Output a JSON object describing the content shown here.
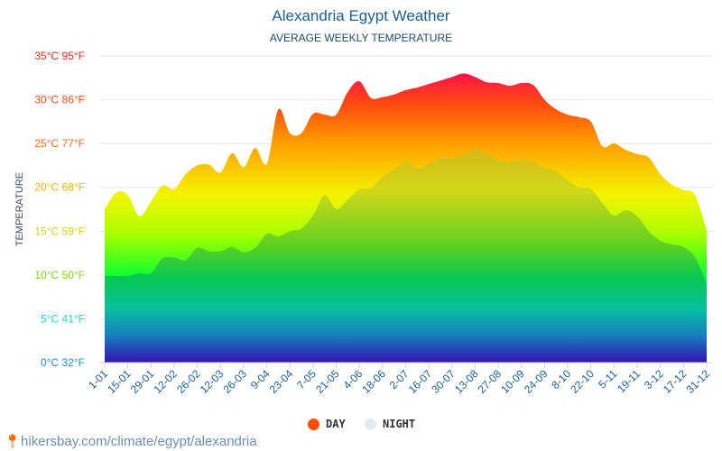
{
  "chart_data": {
    "type": "area",
    "title": "Alexandria Egypt Weather",
    "subtitle": "AVERAGE WEEKLY TEMPERATURE",
    "ylabel": "TEMPERATURE",
    "ylim": [
      0,
      35
    ],
    "y_ticks": [
      {
        "c": 0,
        "label": "0°C 32°F",
        "color": "#1e8fd0"
      },
      {
        "c": 5,
        "label": "5°C 41°F",
        "color": "#1ad6c8"
      },
      {
        "c": 10,
        "label": "10°C 50°F",
        "color": "#7ad61a"
      },
      {
        "c": 15,
        "label": "15°C 59°F",
        "color": "#c8d61a"
      },
      {
        "c": 20,
        "label": "20°C 68°F",
        "color": "#f0b400"
      },
      {
        "c": 25,
        "label": "25°C 77°F",
        "color": "#ff6a1a"
      },
      {
        "c": 30,
        "label": "30°C 86°F",
        "color": "#ff4a1a"
      },
      {
        "c": 35,
        "label": "35°C 95°F",
        "color": "#ff2a1a"
      }
    ],
    "x_tick_labels": [
      "1-01",
      "15-01",
      "29-01",
      "12-02",
      "26-02",
      "12-03",
      "26-03",
      "9-04",
      "23-04",
      "7-05",
      "21-05",
      "4-06",
      "18-06",
      "2-07",
      "16-07",
      "30-07",
      "13-08",
      "27-08",
      "10-09",
      "24-09",
      "8-10",
      "22-10",
      "5-11",
      "19-11",
      "3-12",
      "17-12",
      "31-12"
    ],
    "grid": true,
    "legend_position": "bottom",
    "series": [
      {
        "name": "DAY",
        "color": "#ff5000",
        "values": [
          17.5,
          19.4,
          19.1,
          16.7,
          18.4,
          20.2,
          19.8,
          21.5,
          22.5,
          22.6,
          21.7,
          23.9,
          22.3,
          24.5,
          22.7,
          28.9,
          26.2,
          26.2,
          28.4,
          28.3,
          28.3,
          30.9,
          32.1,
          30.2,
          30.3,
          30.6,
          31.1,
          31.4,
          31.8,
          32.2,
          32.6,
          33.0,
          32.6,
          32.0,
          31.9,
          31.6,
          31.9,
          31.7,
          30.0,
          28.9,
          28.3,
          28.0,
          27.5,
          24.7,
          25.0,
          24.3,
          23.8,
          23.4,
          21.5,
          20.3,
          19.7,
          19.1,
          15.1
        ]
      },
      {
        "name": "NIGHT",
        "color": "#e4e9f0",
        "values": [
          9.9,
          9.9,
          9.9,
          10.2,
          10.2,
          11.9,
          12.0,
          11.7,
          13.1,
          12.7,
          12.7,
          13.2,
          12.6,
          13.1,
          14.7,
          14.4,
          15.0,
          15.3,
          16.8,
          19.1,
          17.5,
          18.6,
          19.8,
          19.9,
          21.2,
          22.0,
          23.0,
          22.2,
          22.7,
          23.4,
          23.4,
          23.7,
          24.4,
          23.9,
          23.2,
          22.9,
          23.2,
          22.9,
          22.2,
          21.8,
          20.8,
          20.0,
          19.8,
          18.2,
          16.8,
          17.4,
          16.7,
          15.0,
          13.9,
          13.5,
          13.2,
          12.0,
          9.1
        ]
      }
    ]
  },
  "source": "hikersbay.com/climate/egypt/alexandria",
  "icons": {
    "source": "map-pin-icon"
  }
}
